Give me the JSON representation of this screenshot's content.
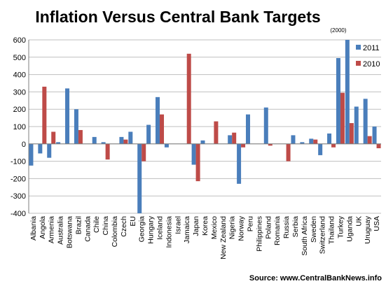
{
  "chart_data": {
    "type": "bar",
    "title": "Inflation Versus Central Bank Targets",
    "source": "Source: www.CentralBankNews.info",
    "ylim": [
      -400,
      600
    ],
    "yticks": [
      "-400",
      "-300",
      "-200",
      "-100",
      "0",
      "100",
      "200",
      "300",
      "400",
      "500",
      "600"
    ],
    "yticks_values": [
      -400,
      -300,
      -200,
      -100,
      0,
      100,
      200,
      300,
      400,
      500,
      600
    ],
    "grid": true,
    "legend_position": "right",
    "annotation": {
      "text": "(2000)",
      "category": "Turkey",
      "series": "2011"
    },
    "categories": [
      "Albania",
      "Angola",
      "Armenia",
      "Australia",
      "Botswana",
      "Brazil",
      "Canada",
      "Chile",
      "China",
      "Colombia",
      "Czech",
      "EU",
      "Georgia",
      "Hungary",
      "Iceland",
      "Indonesia",
      "Israel",
      "Jamaica",
      "Japan",
      "Korea",
      "Mexico",
      "New Zealand",
      "Nigeria",
      "Norway",
      "Peru",
      "Philippines",
      "Poland",
      "Romania",
      "Russia",
      "Serbia",
      "South Africa",
      "Sweden",
      "Switzerland",
      "Thailand",
      "Turkey",
      "Uganda",
      "UK",
      "Uruguay",
      "USA"
    ],
    "series": [
      {
        "name": "2011",
        "color": "#4a7ebb",
        "values": [
          -125,
          -55,
          -80,
          10,
          320,
          200,
          0,
          40,
          10,
          0,
          40,
          70,
          -400,
          110,
          270,
          -20,
          0,
          0,
          -120,
          20,
          0,
          0,
          50,
          -230,
          170,
          0,
          210,
          0,
          0,
          50,
          10,
          30,
          -65,
          60,
          495,
          600,
          215,
          260,
          100
        ]
      },
      {
        "name": "2010",
        "color": "#be4b48",
        "values": [
          0,
          330,
          70,
          0,
          0,
          80,
          0,
          0,
          -90,
          0,
          25,
          0,
          -100,
          0,
          170,
          0,
          0,
          520,
          -215,
          0,
          130,
          0,
          65,
          -20,
          0,
          0,
          -10,
          0,
          -100,
          0,
          0,
          25,
          0,
          -20,
          295,
          120,
          0,
          45,
          -25
        ]
      }
    ]
  }
}
